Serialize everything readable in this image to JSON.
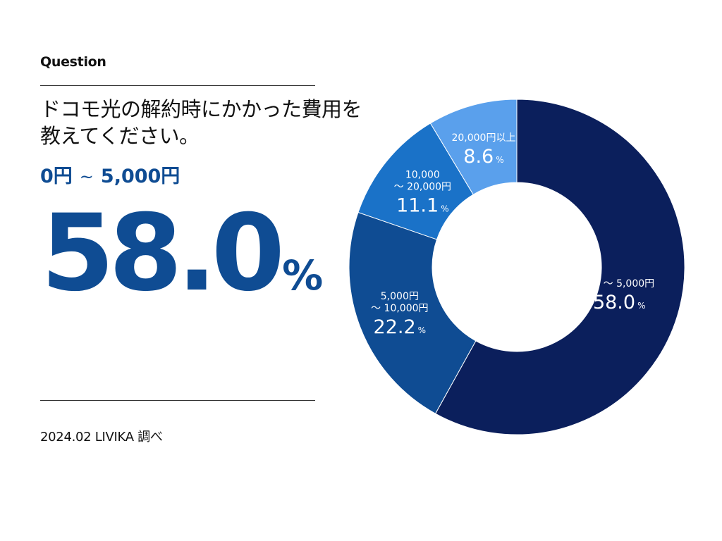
{
  "header": {
    "label": "Question"
  },
  "question": {
    "line1": "ドコモ光の解約時にかかった費用を",
    "line2": "教えてください。"
  },
  "answer": {
    "range_from": "0円",
    "separator": "~",
    "range_to": "5,000円"
  },
  "highlight": {
    "value": "58.0",
    "unit": "%"
  },
  "source": "2024.02 LIVIKA 調べ",
  "chart_data": {
    "type": "pie",
    "donut": true,
    "unit": "%",
    "slices": [
      {
        "label_lines": [
          "0円 ～ 5,000円"
        ],
        "value": 58.0,
        "color": "#0b1f5c"
      },
      {
        "label_lines": [
          "5,000円",
          "～ 10,000円"
        ],
        "value": 22.2,
        "color": "#0f4c93"
      },
      {
        "label_lines": [
          "10,000",
          "～ 20,000円"
        ],
        "value": 11.1,
        "color": "#1a72c8"
      },
      {
        "label_lines": [
          "20,000円以上"
        ],
        "value": 8.6,
        "color": "#5aa0ec"
      }
    ]
  }
}
